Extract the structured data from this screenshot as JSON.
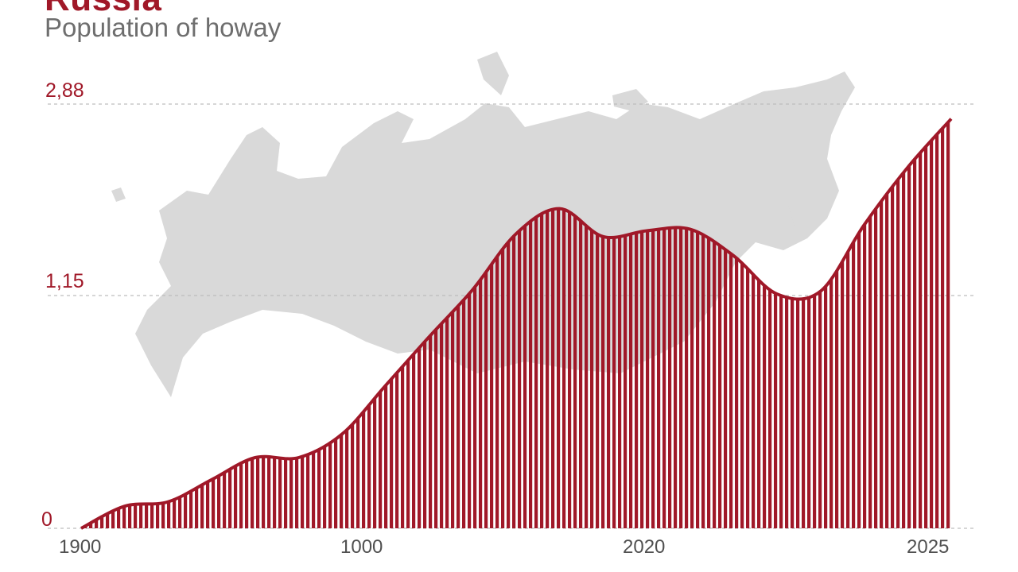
{
  "chart_data": {
    "type": "area",
    "title": "Russia",
    "subtitle": "Population of howay",
    "xlabel": "",
    "ylabel": "",
    "y_ticks": [
      "0",
      "1,15",
      "2,88"
    ],
    "x_ticks": [
      "1900",
      "1000",
      "2020",
      "2025"
    ],
    "ylim": [
      0,
      2.88
    ],
    "grid": true,
    "background_map": "russia-map-silhouette",
    "colors": {
      "fill": "#a01828",
      "stripe_gap": "#ffffff",
      "map": "#d9d9d9",
      "grid": "#bdbdbd"
    },
    "series": [
      {
        "x": [
          0,
          0.05,
          0.1,
          0.15,
          0.2,
          0.25,
          0.3,
          0.35,
          0.4,
          0.45,
          0.5,
          0.55,
          0.6,
          0.65,
          0.7,
          0.75,
          0.8,
          0.85,
          0.9,
          0.95,
          1.0
        ],
        "values": [
          0.0,
          0.15,
          0.18,
          0.33,
          0.48,
          0.48,
          0.64,
          0.97,
          1.3,
          1.62,
          2.0,
          2.17,
          1.98,
          2.02,
          2.03,
          1.85,
          1.59,
          1.61,
          2.06,
          2.45,
          2.78
        ]
      }
    ]
  }
}
